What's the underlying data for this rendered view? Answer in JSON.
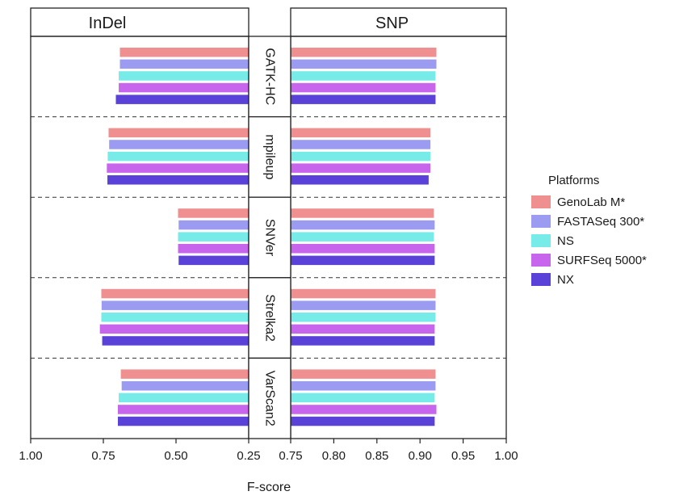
{
  "chart_data": {
    "type": "bar",
    "orientation": "horizontal",
    "facet_columns": [
      "InDel",
      "SNP"
    ],
    "facet_rows": [
      "GATK-HC",
      "mpileup",
      "SNVer",
      "Strelka2",
      "VarScan2"
    ],
    "xlabel": "F-score",
    "panels": {
      "InDel": {
        "xlim": [
          1.0,
          0.25
        ],
        "reversed": true,
        "ticks": [
          1.0,
          0.75,
          0.5,
          0.25
        ],
        "tick_labels": [
          "1.00",
          "0.75",
          "0.50",
          "0.25"
        ]
      },
      "SNP": {
        "xlim": [
          0.75,
          1.0
        ],
        "reversed": false,
        "ticks": [
          0.75,
          0.8,
          0.85,
          0.9,
          0.95,
          1.0
        ],
        "tick_labels": [
          "0.75",
          "0.80",
          "0.85",
          "0.90",
          "0.95",
          "1.00"
        ]
      }
    },
    "series": [
      {
        "name": "GenoLab M*",
        "color": "#f08f8f",
        "InDel": [
          0.693,
          0.732,
          0.493,
          0.757,
          0.69
        ],
        "SNP": [
          0.919,
          0.912,
          0.916,
          0.918,
          0.918
        ]
      },
      {
        "name": "FASTASeq 300*",
        "color": "#9b9bf2",
        "InDel": [
          0.693,
          0.73,
          0.491,
          0.756,
          0.687
        ],
        "SNP": [
          0.919,
          0.912,
          0.917,
          0.918,
          0.918
        ]
      },
      {
        "name": "NS",
        "color": "#76ebe8",
        "InDel": [
          0.697,
          0.735,
          0.493,
          0.757,
          0.697
        ],
        "SNP": [
          0.918,
          0.912,
          0.916,
          0.918,
          0.917
        ]
      },
      {
        "name": "SURFSeq 5000*",
        "color": "#c865ed",
        "InDel": [
          0.697,
          0.738,
          0.493,
          0.762,
          0.7
        ],
        "SNP": [
          0.918,
          0.912,
          0.917,
          0.917,
          0.919
        ]
      },
      {
        "name": "NX",
        "color": "#5a42d8",
        "InDel": [
          0.707,
          0.736,
          0.491,
          0.754,
          0.7
        ],
        "SNP": [
          0.918,
          0.91,
          0.917,
          0.917,
          0.917
        ]
      }
    ],
    "legend": {
      "title": "Platforms",
      "position": "right"
    },
    "grid": false
  }
}
